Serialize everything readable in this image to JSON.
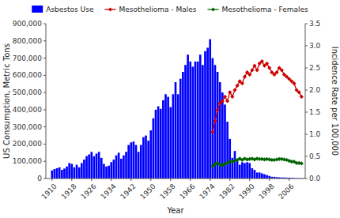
{
  "chart_data": {
    "type": "bar",
    "xlabel": "Year",
    "ylabel": "US Consumption, Metric Tons",
    "y2label": "Incidence Rate per 100,000",
    "xlim": [
      1907.5,
      2012.5
    ],
    "xticks": [
      1910,
      1918,
      1926,
      1934,
      1942,
      1950,
      1958,
      1966,
      1974,
      1982,
      1990,
      1998,
      2006
    ],
    "ylim": [
      0,
      900000
    ],
    "yticks": [
      0,
      {
        "value": 100000,
        "label": "100,000"
      },
      {
        "value": 200000,
        "label": "200,000"
      },
      {
        "value": 300000,
        "label": "300,000"
      },
      {
        "value": 400000,
        "label": "400,000"
      },
      {
        "value": 500000,
        "label": "500,000"
      },
      {
        "value": 600000,
        "label": "600,000"
      },
      {
        "value": 700000,
        "label": "700,000"
      },
      {
        "value": 800000,
        "label": "800,000"
      },
      {
        "value": 900000,
        "label": "900,000"
      }
    ],
    "y2lim": [
      0.0,
      3.5
    ],
    "y2ticks": [
      {
        "value": 0,
        "label": "0.0"
      },
      0.5,
      {
        "value": 1,
        "label": "1.0"
      },
      1.5,
      {
        "value": 2,
        "label": "2.0"
      },
      2.5,
      {
        "value": 3,
        "label": "3.0"
      },
      3.5
    ],
    "grid": false,
    "legend": "top",
    "series": [
      {
        "name": "Asbestos Use",
        "type": "bar",
        "color": "#0000FF",
        "x": [
          1910,
          1911,
          1912,
          1913,
          1914,
          1915,
          1916,
          1917,
          1918,
          1919,
          1920,
          1921,
          1922,
          1923,
          1924,
          1925,
          1926,
          1927,
          1928,
          1929,
          1930,
          1931,
          1932,
          1933,
          1934,
          1935,
          1936,
          1937,
          1938,
          1939,
          1940,
          1941,
          1942,
          1943,
          1944,
          1945,
          1946,
          1947,
          1948,
          1949,
          1950,
          1951,
          1952,
          1953,
          1954,
          1955,
          1956,
          1957,
          1958,
          1959,
          1960,
          1961,
          1962,
          1963,
          1964,
          1965,
          1966,
          1967,
          1968,
          1969,
          1970,
          1971,
          1972,
          1973,
          1974,
          1975,
          1976,
          1977,
          1978,
          1979,
          1980,
          1981,
          1982,
          1983,
          1984,
          1985,
          1986,
          1987,
          1988,
          1989,
          1990,
          1991,
          1992,
          1993,
          1994,
          1995,
          1996,
          1997,
          1998,
          1999,
          2000,
          2001,
          2002,
          2003,
          2004,
          2005,
          2006,
          2007,
          2008,
          2009,
          2010,
          2011,
          2012
        ],
        "values": [
          47000,
          55000,
          60000,
          65000,
          50000,
          58000,
          70000,
          90000,
          85000,
          65000,
          80000,
          65000,
          90000,
          110000,
          130000,
          140000,
          155000,
          130000,
          145000,
          155000,
          120000,
          85000,
          70000,
          75000,
          95000,
          110000,
          135000,
          150000,
          115000,
          135000,
          155000,
          195000,
          210000,
          215000,
          195000,
          155000,
          195000,
          240000,
          250000,
          220000,
          280000,
          350000,
          400000,
          420000,
          405000,
          455000,
          490000,
          475000,
          415000,
          490000,
          560000,
          490000,
          580000,
          620000,
          660000,
          720000,
          680000,
          650000,
          680000,
          680000,
          720000,
          660000,
          740000,
          760000,
          810000,
          700000,
          660000,
          620000,
          560000,
          500000,
          430000,
          330000,
          230000,
          120000,
          160000,
          115000,
          80000,
          95000,
          90000,
          95000,
          90000,
          60000,
          50000,
          35000,
          35000,
          30000,
          25000,
          20000,
          15000,
          10000,
          10000,
          8000,
          7000,
          6000,
          6000,
          5000,
          5000,
          4000,
          3000,
          2000,
          2000,
          1500,
          1000
        ]
      },
      {
        "name": "Mesothelioma - Males",
        "type": "line",
        "axis": "y2",
        "color": "#CC0000",
        "marker": "diamond",
        "x": [
          1975,
          1976,
          1977,
          1978,
          1979,
          1980,
          1981,
          1982,
          1983,
          1984,
          1985,
          1986,
          1987,
          1988,
          1989,
          1990,
          1991,
          1992,
          1993,
          1994,
          1995,
          1996,
          1997,
          1998,
          1999,
          2000,
          2001,
          2002,
          2003,
          2004,
          2005,
          2006,
          2007,
          2008,
          2009,
          2010,
          2011
        ],
        "values": [
          1.05,
          1.3,
          1.55,
          1.7,
          1.75,
          1.85,
          1.75,
          1.95,
          1.85,
          2.0,
          2.1,
          2.2,
          2.15,
          2.3,
          2.4,
          2.35,
          2.45,
          2.55,
          2.45,
          2.6,
          2.65,
          2.55,
          2.6,
          2.5,
          2.4,
          2.35,
          2.4,
          2.5,
          2.45,
          2.35,
          2.3,
          2.25,
          2.2,
          2.15,
          2.0,
          1.95,
          1.85
        ]
      },
      {
        "name": "Mesothelioma - Females",
        "type": "line",
        "axis": "y2",
        "color": "#006600",
        "marker": "diamond",
        "x": [
          1975,
          1976,
          1977,
          1978,
          1979,
          1980,
          1981,
          1982,
          1983,
          1984,
          1985,
          1986,
          1987,
          1988,
          1989,
          1990,
          1991,
          1992,
          1993,
          1994,
          1995,
          1996,
          1997,
          1998,
          1999,
          2000,
          2001,
          2002,
          2003,
          2004,
          2005,
          2006,
          2007,
          2008,
          2009,
          2010,
          2011
        ],
        "values": [
          0.28,
          0.32,
          0.35,
          0.32,
          0.3,
          0.33,
          0.35,
          0.38,
          0.38,
          0.4,
          0.42,
          0.45,
          0.42,
          0.45,
          0.43,
          0.44,
          0.45,
          0.43,
          0.45,
          0.44,
          0.44,
          0.43,
          0.44,
          0.43,
          0.42,
          0.42,
          0.43,
          0.44,
          0.44,
          0.43,
          0.42,
          0.4,
          0.38,
          0.38,
          0.35,
          0.35,
          0.34
        ]
      }
    ]
  }
}
